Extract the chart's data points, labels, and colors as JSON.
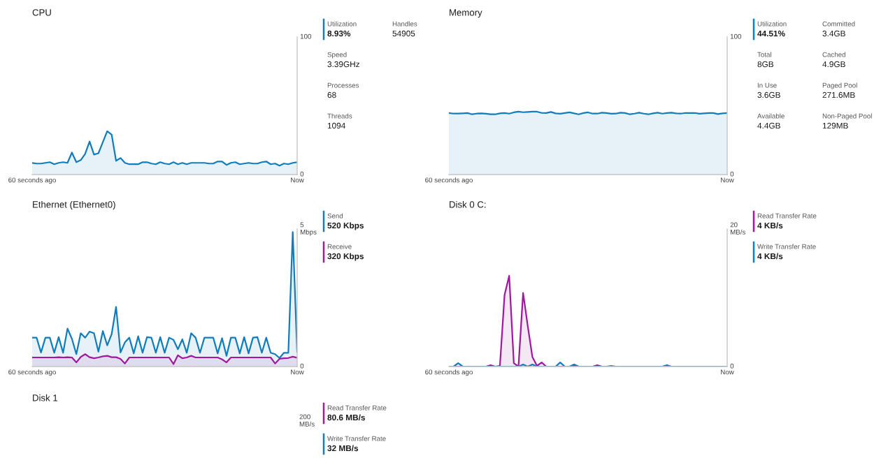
{
  "chart_data": [
    {
      "type": "area",
      "title": "CPU",
      "categories": [
        "60 seconds ago",
        null,
        null,
        null,
        null,
        null,
        null,
        null,
        null,
        null,
        null,
        null,
        null,
        null,
        null,
        null,
        null,
        null,
        null,
        null,
        null,
        null,
        null,
        null,
        null,
        null,
        null,
        null,
        null,
        null,
        null,
        null,
        null,
        null,
        null,
        null,
        null,
        null,
        null,
        null,
        null,
        null,
        null,
        null,
        null,
        null,
        null,
        null,
        null,
        null,
        null,
        null,
        null,
        null,
        null,
        null,
        null,
        null,
        null,
        null,
        "Now"
      ],
      "ylim": [
        0,
        100
      ],
      "yticks": [
        0,
        100
      ],
      "series": [
        {
          "name": "Utilization",
          "color": "#117dbb",
          "values": [
            8.5,
            8,
            8,
            8.5,
            9,
            7.5,
            8.5,
            9,
            8.5,
            16,
            9,
            10.5,
            15,
            24,
            14.5,
            15.5,
            23.5,
            31.5,
            29,
            10,
            12,
            8.5,
            7.5,
            7.5,
            7.5,
            9,
            9,
            8,
            7.5,
            9,
            8,
            7.5,
            9,
            7.5,
            8.5,
            7.5,
            8.5,
            8.5,
            8.5,
            8.5,
            8,
            8,
            9.5,
            9.5,
            7,
            8.5,
            9,
            7.5,
            8,
            8.5,
            8,
            8,
            9,
            9.5,
            7.5,
            8,
            6.5,
            8,
            7.5,
            8.5,
            9
          ]
        }
      ],
      "legend": "right",
      "annotations": [
        "8.93%",
        "Speed\n3.39GHz",
        "Processes\n68",
        "Threads\n1094",
        "Handles\n54905"
      ]
    },
    {
      "type": "area",
      "title": "Memory",
      "categories": [
        "60 seconds ago",
        null,
        null,
        null,
        null,
        null,
        null,
        null,
        null,
        null,
        null,
        null,
        null,
        null,
        null,
        null,
        null,
        null,
        null,
        null,
        null,
        null,
        null,
        null,
        null,
        null,
        null,
        null,
        null,
        null,
        null,
        null,
        null,
        null,
        null,
        null,
        null,
        null,
        null,
        null,
        null,
        null,
        null,
        null,
        null,
        null,
        null,
        null,
        null,
        null,
        null,
        null,
        null,
        null,
        null,
        null,
        null,
        null,
        null,
        null,
        "Now"
      ],
      "ylim": [
        0,
        100
      ],
      "yticks": [
        0,
        100
      ],
      "series": [
        {
          "name": "Utilization",
          "color": "#117dbb",
          "values": [
            44.7,
            44.3,
            44.3,
            44.5,
            44.7,
            43.8,
            44.3,
            44.5,
            44.2,
            43.8,
            43.8,
            44.5,
            44.7,
            44.3,
            45.2,
            45.7,
            45.3,
            45.5,
            45.7,
            45.7,
            44.8,
            44.7,
            45.5,
            44.5,
            44.2,
            44.7,
            45.2,
            44.5,
            43.8,
            44.7,
            45.2,
            44.3,
            44.3,
            45,
            44.7,
            44.2,
            44.3,
            45,
            44.7,
            43.8,
            44.3,
            45,
            44.3,
            43.8,
            44.5,
            45,
            44.3,
            44.7,
            45,
            44.5,
            44.3,
            44.8,
            44.7,
            44.8,
            44.2,
            44.5,
            44.7,
            44.7,
            44,
            44.5,
            44.7
          ]
        }
      ],
      "legend": "right",
      "annotations": [
        "44.51%",
        "Total\n8GB",
        "In Use\n3.6GB",
        "Available\n4.4GB",
        "Committed\n3.4GB",
        "Cached\n4.9GB",
        "Paged Pool\n271.6MB",
        "Non-Paged Pool\n129MB"
      ]
    },
    {
      "type": "area",
      "title": "Ethernet (Ethernet0)",
      "categories": [
        "60 seconds ago",
        null,
        null,
        null,
        null,
        null,
        null,
        null,
        null,
        null,
        null,
        null,
        null,
        null,
        null,
        null,
        null,
        null,
        null,
        null,
        null,
        null,
        null,
        null,
        null,
        null,
        null,
        null,
        null,
        null,
        null,
        null,
        null,
        null,
        null,
        null,
        null,
        null,
        null,
        null,
        null,
        null,
        null,
        null,
        null,
        null,
        null,
        null,
        null,
        null,
        null,
        null,
        null,
        null,
        null,
        null,
        null,
        null,
        null,
        null,
        "Now"
      ],
      "ylim": [
        0,
        5
      ],
      "yticks": [
        0,
        {
          "value": 5,
          "label": "5\nMbps"
        }
      ],
      "series": [
        {
          "name": "Send",
          "color": "#117dbb",
          "values": [
            1.05,
            1.05,
            0.51,
            1.05,
            1.05,
            0.5,
            1.07,
            0.5,
            1.38,
            1.01,
            0.45,
            1.21,
            1.05,
            1.27,
            1.21,
            0.54,
            1.29,
            0.77,
            1.18,
            2.17,
            0.51,
            0.88,
            1.05,
            0.48,
            1.1,
            0.5,
            1.07,
            1.05,
            0.5,
            1.07,
            0.5,
            1.05,
            0.97,
            0.63,
            0.99,
            0.5,
            1.21,
            1.05,
            0.5,
            1.05,
            1.05,
            1.05,
            0.48,
            1.03,
            0.39,
            1.05,
            1.05,
            0.48,
            1.07,
            0.48,
            1.05,
            1.07,
            0.5,
            1.05,
            0.5,
            0.45,
            0.31,
            0.5,
            0.5,
            4.89,
            0.52
          ]
        },
        {
          "name": "Receive",
          "color": "#a0199e",
          "values": [
            0.33,
            0.33,
            0.33,
            0.33,
            0.33,
            0.33,
            0.34,
            0.33,
            0.34,
            0.33,
            0.15,
            0.35,
            0.45,
            0.34,
            0.3,
            0.33,
            0.37,
            0.39,
            0.34,
            0.34,
            0.28,
            0.11,
            0.33,
            0.33,
            0.33,
            0.33,
            0.33,
            0.33,
            0.33,
            0.33,
            0.33,
            0.33,
            0.09,
            0.41,
            0.3,
            0.33,
            0.39,
            0.33,
            0.33,
            0.33,
            0.33,
            0.33,
            0.33,
            0.26,
            0.15,
            0.33,
            0.33,
            0.33,
            0.33,
            0.33,
            0.33,
            0.33,
            0.33,
            0.33,
            0.33,
            0.11,
            0.28,
            0.3,
            0.31,
            0.36,
            0.32
          ]
        }
      ],
      "legend": "right",
      "annotations": [
        "520 Kbps",
        "320 Kbps"
      ]
    },
    {
      "type": "area",
      "title": "Disk 0 C:",
      "categories": [
        "60 seconds ago",
        null,
        null,
        null,
        null,
        null,
        null,
        null,
        null,
        null,
        null,
        null,
        null,
        null,
        null,
        null,
        null,
        null,
        null,
        null,
        null,
        null,
        null,
        null,
        null,
        null,
        null,
        null,
        null,
        null,
        null,
        null,
        null,
        null,
        null,
        null,
        null,
        null,
        null,
        null,
        null,
        null,
        null,
        null,
        null,
        null,
        null,
        null,
        null,
        null,
        null,
        null,
        null,
        null,
        null,
        null,
        null,
        null,
        null,
        null,
        "Now"
      ],
      "ylim": [
        0,
        20
      ],
      "yticks": [
        0,
        {
          "value": 20,
          "label": "20\nMB/s"
        }
      ],
      "series": [
        {
          "name": "Read Transfer Rate",
          "color": "#a0199e",
          "values": [
            0,
            0,
            0,
            0,
            0,
            0,
            0,
            0,
            0,
            0.2,
            0,
            0.1,
            10.4,
            13.2,
            0.5,
            0,
            10.7,
            5.9,
            1.4,
            0.1,
            0.6,
            0,
            0,
            0,
            0,
            0,
            0,
            0.1,
            0,
            0,
            0,
            0,
            0.2,
            0,
            0,
            0,
            0,
            0,
            0,
            0,
            0,
            0,
            0,
            0,
            0,
            0,
            0,
            0,
            0,
            0,
            0,
            0,
            0,
            0,
            0,
            0,
            0,
            0,
            0,
            0,
            0
          ]
        },
        {
          "name": "Write Transfer Rate",
          "color": "#117dbb",
          "values": [
            0,
            0,
            0.5,
            0,
            0,
            0,
            0,
            0,
            0,
            0,
            0,
            0,
            0,
            0,
            0,
            0,
            0.3,
            0,
            0.3,
            0,
            0,
            0,
            0,
            0,
            0.6,
            0,
            0,
            0.3,
            0,
            0,
            0,
            0,
            0,
            0,
            0,
            0.1,
            0,
            0,
            0,
            0,
            0,
            0,
            0,
            0,
            0,
            0,
            0,
            0.2,
            0,
            0,
            0,
            0,
            0,
            0,
            0,
            0,
            0,
            0,
            0,
            0,
            0
          ]
        }
      ],
      "legend": "right",
      "annotations": [
        "4 KB/s",
        "4 KB/s"
      ]
    },
    {
      "type": "other",
      "title": "Disk 1",
      "annotations": [
        "200\nMB/s",
        "Read Transfer Rate\n80.6 MB/s",
        "Write Transfer Rate\n32 MB/s"
      ],
      "colors": [
        null,
        "#a0199e",
        "#117dbb"
      ]
    }
  ]
}
